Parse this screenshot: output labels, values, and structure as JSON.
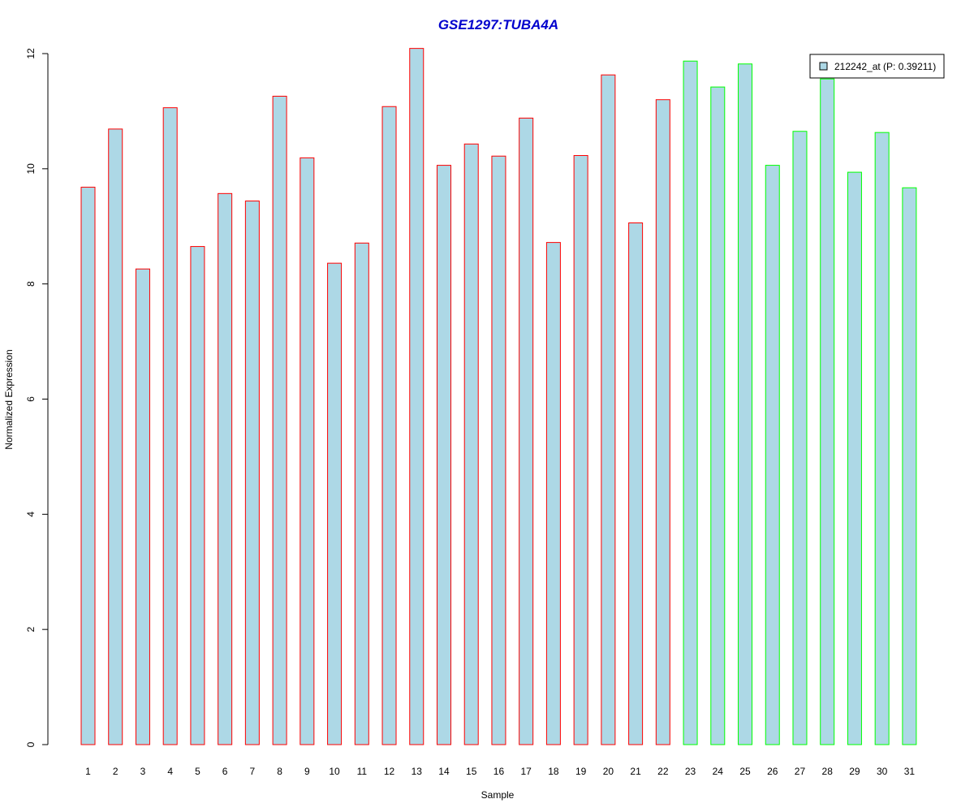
{
  "chart_data": {
    "type": "bar",
    "title": "GSE1297:TUBA4A",
    "xlabel": "Sample",
    "ylabel": "Normalized Expression",
    "ylim": [
      0,
      12
    ],
    "yticks": [
      0,
      2,
      4,
      6,
      8,
      10,
      12
    ],
    "categories": [
      "1",
      "2",
      "3",
      "4",
      "5",
      "6",
      "7",
      "8",
      "9",
      "10",
      "11",
      "12",
      "13",
      "14",
      "15",
      "16",
      "17",
      "18",
      "19",
      "20",
      "21",
      "22",
      "23",
      "24",
      "25",
      "26",
      "27",
      "28",
      "29",
      "30",
      "31"
    ],
    "series": [
      {
        "name": "212242_at (P: 0.39211)",
        "values": [
          9.68,
          10.69,
          8.26,
          11.06,
          8.65,
          9.57,
          9.44,
          11.26,
          10.19,
          8.36,
          8.71,
          11.08,
          12.09,
          10.06,
          10.43,
          10.22,
          10.88,
          8.72,
          10.23,
          11.63,
          9.06,
          11.2,
          11.87,
          11.42,
          11.82,
          10.06,
          10.65,
          11.56,
          9.94,
          10.63,
          9.67
        ]
      }
    ],
    "border_colors": [
      "#ff0000",
      "#ff0000",
      "#ff0000",
      "#ff0000",
      "#ff0000",
      "#ff0000",
      "#ff0000",
      "#ff0000",
      "#ff0000",
      "#ff0000",
      "#ff0000",
      "#ff0000",
      "#ff0000",
      "#ff0000",
      "#ff0000",
      "#ff0000",
      "#ff0000",
      "#ff0000",
      "#ff0000",
      "#ff0000",
      "#ff0000",
      "#ff0000",
      "#00ff00",
      "#00ff00",
      "#00ff00",
      "#00ff00",
      "#00ff00",
      "#00ff00",
      "#00ff00",
      "#00ff00",
      "#00ff00"
    ],
    "fill_color": "#add8e6",
    "title_color": "#0000cd",
    "grid": false,
    "legend_position": "top-right"
  }
}
